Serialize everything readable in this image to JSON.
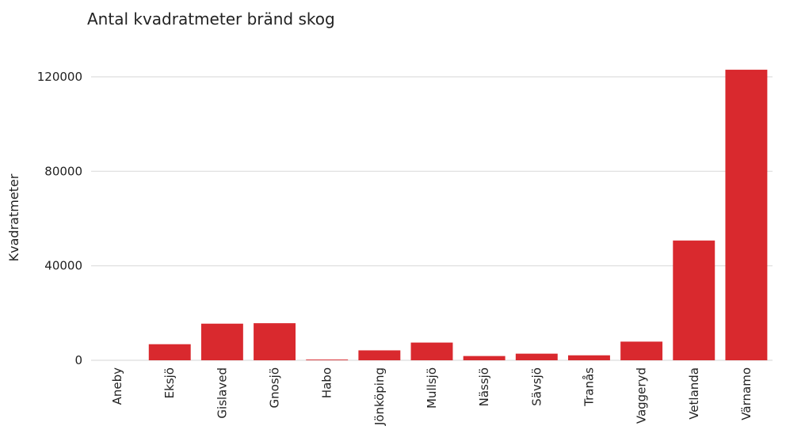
{
  "chart_data": {
    "type": "bar",
    "title": "Antal kvadratmeter bränd skog",
    "xlabel": "",
    "ylabel": "Kvadratmeter",
    "categories": [
      "Aneby",
      "Eksjö",
      "Gislaved",
      "Gnosjö",
      "Habo",
      "Jönköping",
      "Mullsjö",
      "Nässjö",
      "Sävsjö",
      "Tranås",
      "Vaggeryd",
      "Vetlanda",
      "Värnamo"
    ],
    "values": [
      0,
      6800,
      15500,
      15700,
      300,
      4200,
      7500,
      1800,
      2800,
      2100,
      7900,
      50700,
      123000
    ],
    "ylim": [
      0,
      124000
    ],
    "yticks": [
      0,
      40000,
      80000,
      120000
    ],
    "grid": "horizontal",
    "bar_color": "#d9292e",
    "gridline_color": "#dddddd",
    "text_color": "#222222"
  }
}
